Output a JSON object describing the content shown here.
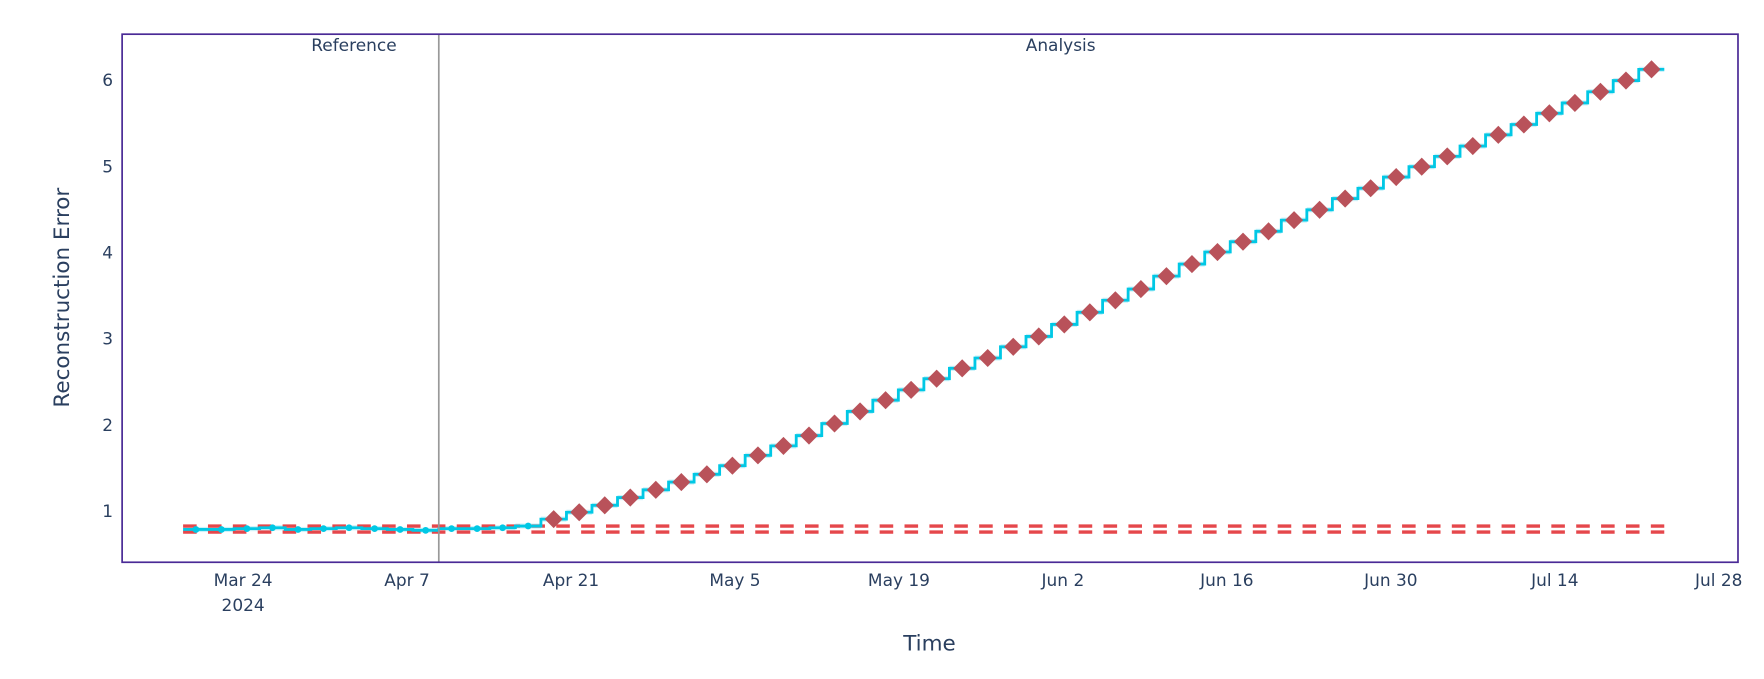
{
  "chart_data": {
    "type": "line",
    "title": "",
    "xlabel": "Time",
    "ylabel": "Reconstruction Error",
    "ylim": [
      0.41,
      6.54
    ],
    "xlim": [
      "2024-03-15",
      "2024-07-29"
    ],
    "x_ticks": [
      "Mar 24",
      "Apr 7",
      "Apr 21",
      "May 5",
      "May 19",
      "Jun 2",
      "Jun 16",
      "Jun 30",
      "Jul 14",
      "Jul 28"
    ],
    "x_tick_dates": [
      "2024-03-24",
      "2024-04-07",
      "2024-04-21",
      "2024-05-05",
      "2024-05-19",
      "2024-06-02",
      "2024-06-16",
      "2024-06-30",
      "2024-07-14",
      "2024-07-28"
    ],
    "x_tick_year": "2024",
    "y_ticks": [
      1,
      2,
      3,
      4,
      5,
      6
    ],
    "grid": false,
    "legend": "none",
    "periods": [
      {
        "label": "Reference"
      },
      {
        "label": "Analysis"
      }
    ],
    "thresholds": {
      "upper": 0.83,
      "lower": 0.76,
      "color": "#e5474b"
    },
    "colors": {
      "line": "#00c8e5",
      "band": "#bfeff7",
      "alert": "#b9525a",
      "divider": "#999999",
      "border": "#4a2a96",
      "text": "#2a3f5f"
    },
    "reference": {
      "start": "2024-03-18T21:00:00Z",
      "chunk_days": 2.18,
      "values": [
        0.79,
        0.79,
        0.8,
        0.81,
        0.79,
        0.8,
        0.81,
        0.8,
        0.79,
        0.78
      ]
    },
    "analysis": {
      "start": "2024-04-09T17:00:00Z",
      "chunk_days": 2.18,
      "values": [
        0.8,
        0.8,
        0.81,
        0.83,
        0.91,
        0.99,
        1.07,
        1.16,
        1.25,
        1.34,
        1.43,
        1.53,
        1.65,
        1.76,
        1.88,
        2.02,
        2.16,
        2.29,
        2.41,
        2.54,
        2.66,
        2.78,
        2.91,
        3.03,
        3.17,
        3.31,
        3.45,
        3.58,
        3.73,
        3.87,
        4.01,
        4.13,
        4.25,
        4.38,
        4.5,
        4.63,
        4.75,
        4.88,
        5.0,
        5.12,
        5.24,
        5.37,
        5.49,
        5.62,
        5.74,
        5.87,
        6.0,
        6.13
      ]
    }
  }
}
